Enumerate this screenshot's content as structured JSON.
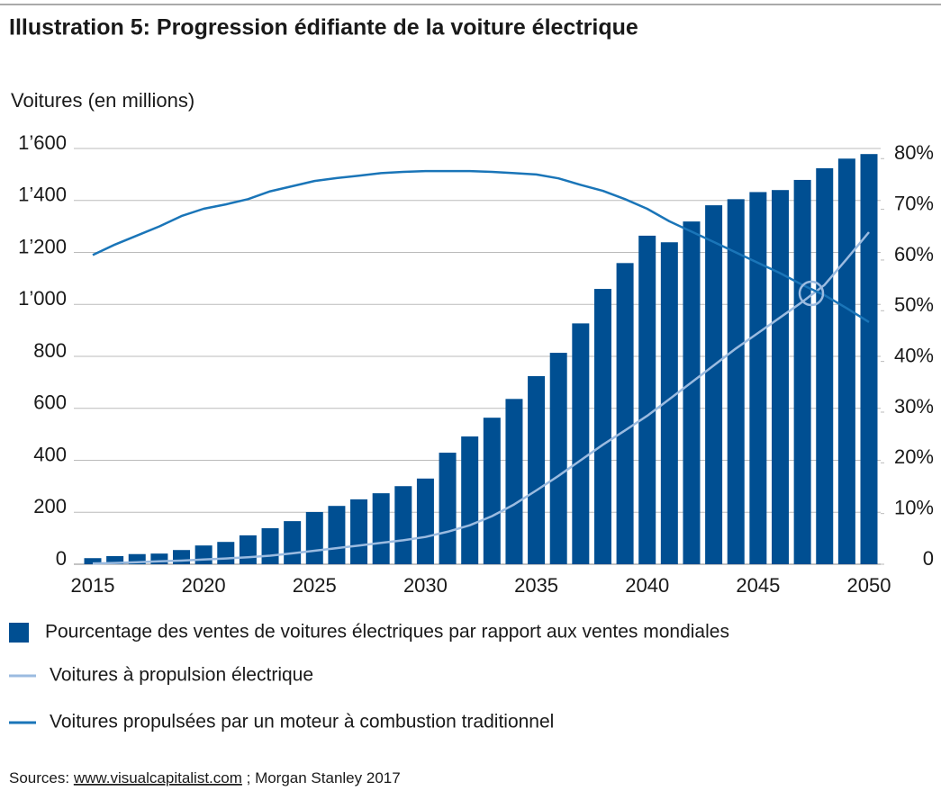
{
  "chart_data": {
    "type": "bar",
    "title": "Illustration 5: Progression édifiante de la voiture électrique",
    "y_axis_label": "Voitures (en millions)",
    "categories": [
      "2015",
      null,
      null,
      null,
      null,
      "2020",
      null,
      null,
      null,
      null,
      "2025",
      null,
      null,
      null,
      null,
      "2030",
      null,
      null,
      null,
      null,
      "2035",
      null,
      null,
      null,
      null,
      "2040",
      null,
      null,
      null,
      null,
      "2045",
      null,
      null,
      null,
      null,
      "2050"
    ],
    "series": [
      {
        "name": "Pourcentage des ventes de voitures électriques par rapport aux ventes mondiales",
        "type": "bar",
        "axis": "y2",
        "color": "#004f92",
        "values": [
          1.2,
          1.6,
          2.0,
          2.1,
          2.8,
          3.7,
          4.4,
          5.7,
          7.1,
          8.5,
          10.3,
          11.5,
          12.8,
          14.0,
          15.4,
          16.9,
          22.0,
          25.2,
          28.9,
          32.6,
          37.1,
          41.7,
          47.5,
          54.3,
          59.4,
          64.8,
          63.5,
          67.6,
          70.8,
          72.0,
          73.4,
          73.8,
          75.8,
          78.1,
          80.0,
          80.9
        ]
      },
      {
        "name": "Voitures à propulsion électrique",
        "type": "line",
        "color": "#9bbbe0",
        "values": [
          3,
          5,
          8,
          11,
          14,
          18,
          22,
          27,
          33,
          42,
          52,
          62,
          72,
          82,
          92,
          105,
          125,
          150,
          185,
          230,
          284,
          340,
          400,
          460,
          515,
          571,
          635,
          700,
          765,
          830,
          890,
          950,
          1010,
          1075,
          1175,
          1278
        ]
      },
      {
        "name": "Voitures propulsées par un moteur à combustion traditionnel",
        "type": "line",
        "color": "#1a75b8",
        "values": [
          1190,
          1230,
          1265,
          1300,
          1340,
          1368,
          1385,
          1405,
          1435,
          1455,
          1475,
          1486,
          1495,
          1505,
          1510,
          1513,
          1513,
          1513,
          1510,
          1505,
          1500,
          1485,
          1460,
          1437,
          1405,
          1368,
          1320,
          1280,
          1240,
          1200,
          1160,
          1120,
          1075,
          1035,
          985,
          932
        ]
      }
    ],
    "ylim": [
      0,
      1600
    ],
    "yticks": [
      0,
      200,
      400,
      600,
      800,
      {
        "value": 1000,
        "label": "1’000"
      },
      {
        "value": 1200,
        "label": "1’200"
      },
      {
        "value": 1400,
        "label": "1’400"
      },
      {
        "value": 1600,
        "label": "1’600"
      }
    ],
    "y2lim": [
      0,
      82
    ],
    "y2ticks": [
      0,
      {
        "value": 10,
        "label": "10%"
      },
      {
        "value": 20,
        "label": "20%"
      },
      {
        "value": 30,
        "label": "30%"
      },
      {
        "value": 40,
        "label": "40%"
      },
      {
        "value": 50,
        "label": "50%"
      },
      {
        "value": 60,
        "label": "60%"
      },
      {
        "value": 70,
        "label": "70%"
      },
      {
        "value": 80,
        "label": "80%"
      }
    ],
    "grid": true,
    "source_label": "Sources:",
    "source_link": "www.visualcapitalist.com",
    "source_rest": "; Morgan Stanley 2017"
  }
}
